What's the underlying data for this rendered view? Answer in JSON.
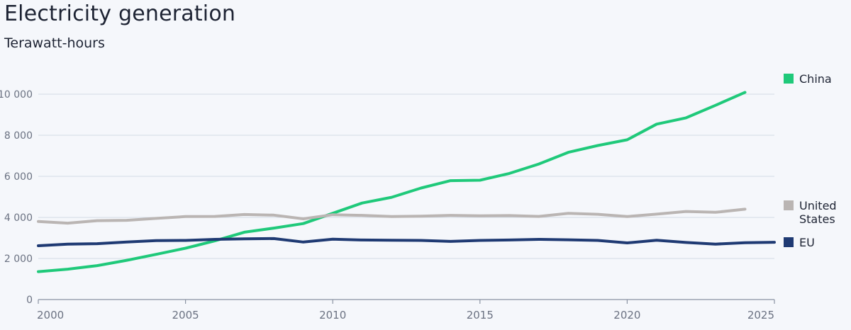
{
  "chart_data": {
    "type": "line",
    "title": "Electricity generation",
    "subtitle": "Terawatt-hours",
    "xlim": [
      2000,
      2025
    ],
    "ylim": [
      0,
      10000
    ],
    "x_ticks": [
      2000,
      2005,
      2010,
      2015,
      2020,
      2025
    ],
    "y_ticks": [
      0,
      2000,
      4000,
      6000,
      8000,
      10000
    ],
    "y_tick_labels": [
      "0",
      "2 000",
      "4 000",
      "6 000",
      "8 000",
      "10 000"
    ],
    "grid": true,
    "legend_position": "right",
    "series": [
      {
        "name": "China",
        "color": "#1fc97a",
        "x": [
          2000,
          2001,
          2002,
          2003,
          2004,
          2005,
          2006,
          2007,
          2008,
          2009,
          2010,
          2011,
          2012,
          2013,
          2014,
          2015,
          2016,
          2017,
          2018,
          2019,
          2020,
          2021,
          2022,
          2023,
          2024
        ],
        "values": [
          1360,
          1480,
          1650,
          1910,
          2200,
          2500,
          2860,
          3280,
          3480,
          3700,
          4200,
          4700,
          4980,
          5430,
          5790,
          5810,
          6140,
          6600,
          7170,
          7500,
          7780,
          8540,
          8850,
          9460,
          10090
        ]
      },
      {
        "name": "United States",
        "color": "#bab5b3",
        "x": [
          2000,
          2001,
          2002,
          2003,
          2004,
          2005,
          2006,
          2007,
          2008,
          2009,
          2010,
          2011,
          2012,
          2013,
          2014,
          2015,
          2016,
          2017,
          2018,
          2019,
          2020,
          2021,
          2022,
          2023,
          2024
        ],
        "values": [
          3800,
          3720,
          3840,
          3860,
          3950,
          4040,
          4050,
          4140,
          4110,
          3930,
          4130,
          4100,
          4040,
          4060,
          4100,
          4080,
          4090,
          4050,
          4200,
          4150,
          4040,
          4160,
          4290,
          4250,
          4400
        ]
      },
      {
        "name": "EU",
        "color": "#1f3a73",
        "x": [
          2000,
          2001,
          2002,
          2003,
          2004,
          2005,
          2006,
          2007,
          2008,
          2009,
          2010,
          2011,
          2012,
          2013,
          2014,
          2015,
          2016,
          2017,
          2018,
          2019,
          2020,
          2021,
          2022,
          2023,
          2024,
          2025
        ],
        "values": [
          2620,
          2700,
          2720,
          2800,
          2870,
          2880,
          2930,
          2960,
          2970,
          2800,
          2940,
          2900,
          2890,
          2880,
          2830,
          2880,
          2900,
          2930,
          2910,
          2880,
          2760,
          2890,
          2780,
          2700,
          2770,
          2790
        ]
      }
    ],
    "legend": [
      {
        "label_lines": [
          "China"
        ],
        "color": "#1fc97a"
      },
      {
        "label_lines": [
          "United",
          "States"
        ],
        "color": "#bab5b3"
      },
      {
        "label_lines": [
          "EU"
        ],
        "color": "#1f3a73"
      }
    ]
  }
}
